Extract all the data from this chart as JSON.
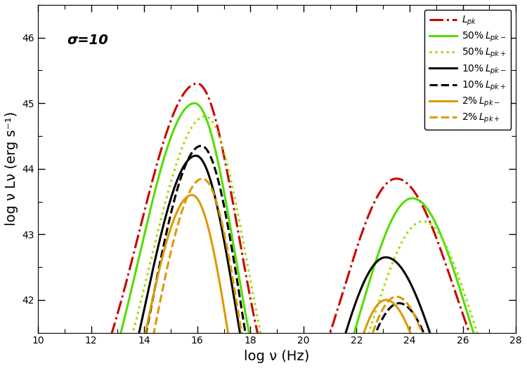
{
  "title_annotation": "σ=10",
  "xlabel": "log ν (Hz)",
  "ylabel": "log ν Lν (erg s⁻¹)",
  "xlim": [
    10,
    28
  ],
  "ylim": [
    41.5,
    46.5
  ],
  "xticks": [
    10,
    12,
    14,
    16,
    18,
    20,
    22,
    24,
    26,
    28
  ],
  "yticks": [
    42,
    43,
    44,
    45,
    46
  ],
  "background_color": "#ffffff",
  "curves": [
    {
      "label": "$L_{pk}$",
      "color": "#cc0000",
      "linestyle": "dashdot",
      "linewidth": 2.2,
      "p1x": 16.0,
      "p1y": 45.3,
      "p2x": 23.5,
      "p2y": 43.85,
      "vx": 19.3,
      "vy": 42.75,
      "s1l": 2.2,
      "s1r": 1.55,
      "s2l": 2.0,
      "s2r": 2.2,
      "floor": 39.5
    },
    {
      "label": "$50\\%\\, L_{pk-}$",
      "color": "#55dd00",
      "linestyle": "solid",
      "linewidth": 2.2,
      "p1x": 15.9,
      "p1y": 45.0,
      "p2x": 24.1,
      "p2y": 43.55,
      "vx": 19.5,
      "vy": 42.2,
      "s1l": 2.1,
      "s1r": 1.55,
      "s2l": 2.0,
      "s2r": 2.1,
      "floor": 39.0
    },
    {
      "label": "$50\\%\\, L_{pk+}$",
      "color": "#99dd00",
      "linestyle": "dotted",
      "linewidth": 2.2,
      "p1x": 16.3,
      "p1y": 44.8,
      "p2x": 24.5,
      "p2y": 43.2,
      "vx": 19.7,
      "vy": 42.15,
      "s1l": 2.1,
      "s1r": 1.6,
      "s2l": 2.0,
      "s2r": 2.0,
      "floor": 39.0
    },
    {
      "label": "$10\\%\\, L_{pk-}$",
      "color": "#000000",
      "linestyle": "solid",
      "linewidth": 2.2,
      "p1x": 15.95,
      "p1y": 44.2,
      "p2x": 23.1,
      "p2y": 42.65,
      "vx": 19.4,
      "vy": 41.0,
      "s1l": 2.0,
      "s1r": 1.55,
      "s2l": 2.0,
      "s2r": 2.2,
      "floor": 38.0
    },
    {
      "label": "$10\\%\\, L_{pk+}$",
      "color": "#000000",
      "linestyle": "dashed",
      "linewidth": 2.2,
      "p1x": 16.15,
      "p1y": 44.35,
      "p2x": 23.6,
      "p2y": 41.95,
      "vx": 19.65,
      "vy": 40.5,
      "s1l": 2.0,
      "s1r": 1.6,
      "s2l": 1.9,
      "s2r": 2.0,
      "floor": 37.5
    },
    {
      "label": "$2\\%\\, L_{pk-}$",
      "color": "#dd9900",
      "linestyle": "solid",
      "linewidth": 2.2,
      "p1x": 15.8,
      "p1y": 43.6,
      "p2x": 23.1,
      "p2y": 42.0,
      "vx": 19.5,
      "vy": 40.2,
      "s1l": 2.0,
      "s1r": 1.55,
      "s2l": 1.8,
      "s2r": 2.0,
      "floor": 37.0
    },
    {
      "label": "$2\\%\\, L_{pk+}$",
      "color": "#dd9900",
      "linestyle": "dashed",
      "linewidth": 2.2,
      "p1x": 16.2,
      "p1y": 43.85,
      "p2x": 23.5,
      "p2y": 42.05,
      "vx": 19.8,
      "vy": 40.2,
      "s1l": 2.0,
      "s1r": 1.6,
      "s2l": 1.85,
      "s2r": 2.0,
      "floor": 37.0
    }
  ]
}
